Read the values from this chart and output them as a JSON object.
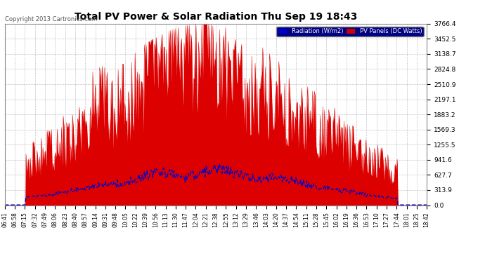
{
  "title": "Total PV Power & Solar Radiation Thu Sep 19 18:43",
  "copyright": "Copyright 2013 Cartronics.com",
  "background_color": "#ffffff",
  "plot_bg_color": "#ffffff",
  "grid_color": "#aaaaaa",
  "y_max": 3766.4,
  "y_ticks": [
    0.0,
    313.9,
    627.7,
    941.6,
    1255.5,
    1569.3,
    1883.2,
    2197.1,
    2510.9,
    2824.8,
    3138.7,
    3452.5,
    3766.4
  ],
  "legend_radiation_color": "#0000cc",
  "legend_pv_color": "#cc0000",
  "legend_radiation_label": "Radiation (W/m2)",
  "legend_pv_label": "PV Panels (DC Watts)",
  "x_labels": [
    "06:41",
    "06:58",
    "07:15",
    "07:32",
    "07:49",
    "08:06",
    "08:23",
    "08:40",
    "08:57",
    "09:14",
    "09:31",
    "09:48",
    "10:05",
    "10:22",
    "10:39",
    "10:56",
    "11:13",
    "11:30",
    "11:47",
    "12:04",
    "12:21",
    "12:38",
    "12:55",
    "13:12",
    "13:29",
    "13:46",
    "14:03",
    "14:20",
    "14:37",
    "14:54",
    "15:11",
    "15:28",
    "15:45",
    "16:02",
    "16:19",
    "16:36",
    "16:53",
    "17:10",
    "17:27",
    "17:44",
    "18:01",
    "18:25",
    "18:42"
  ]
}
